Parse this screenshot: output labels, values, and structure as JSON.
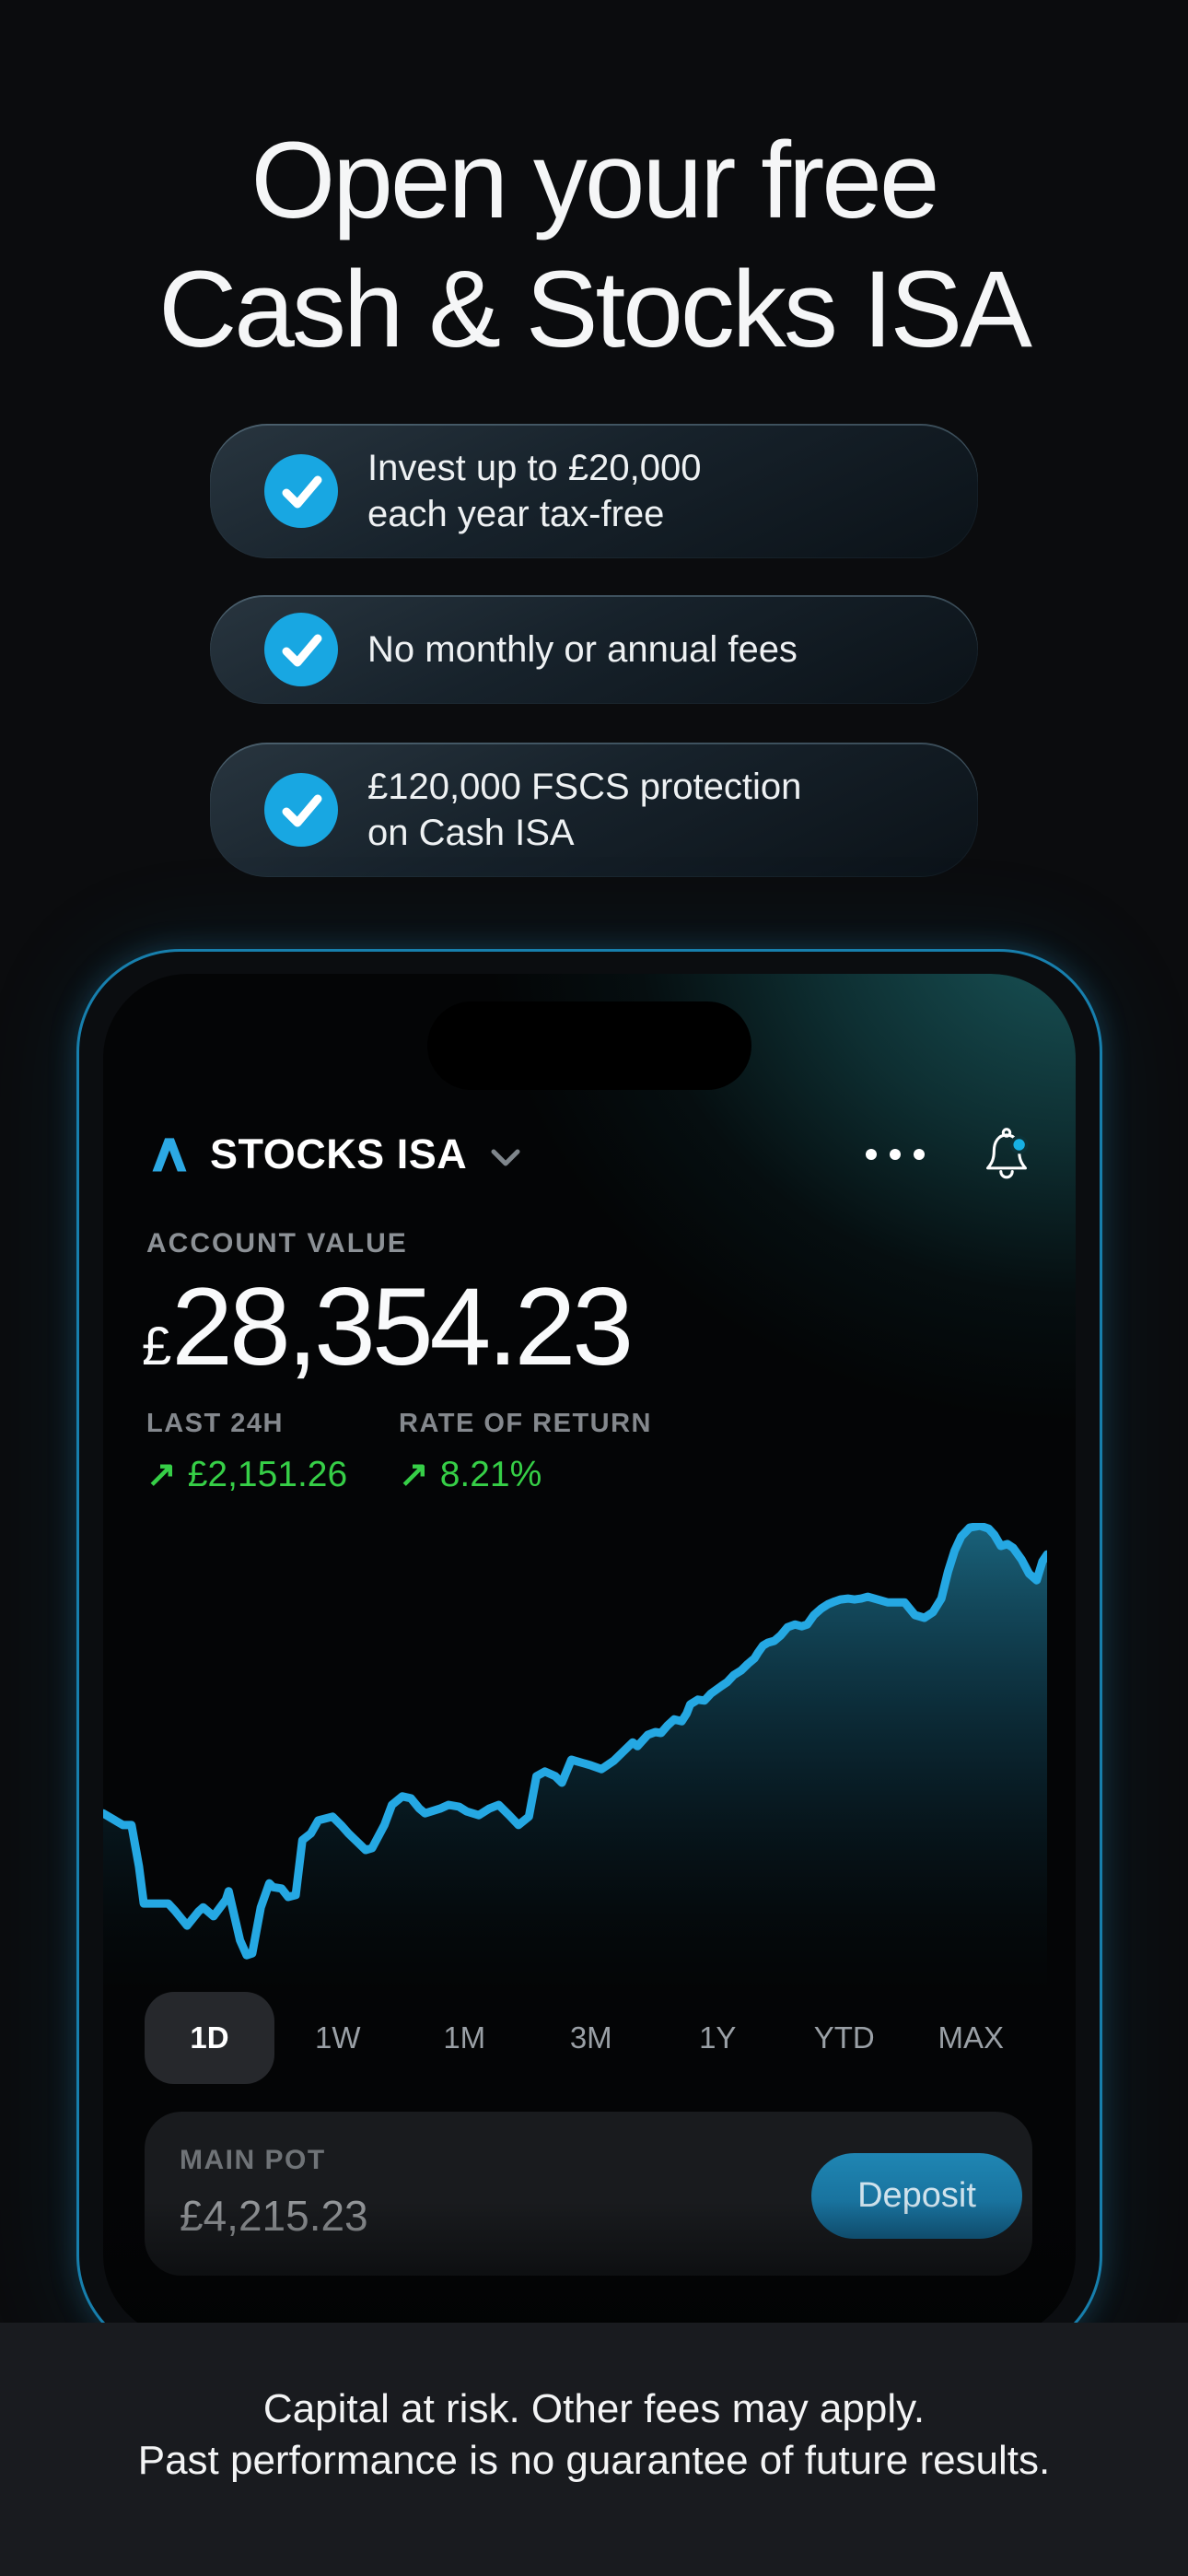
{
  "title": {
    "line1": "Open your free",
    "line2": "Cash & Stocks ISA"
  },
  "benefits": [
    {
      "line1": "Invest up to £20,000",
      "line2": "each year tax-free"
    },
    {
      "line1": "No monthly or annual fees",
      "line2": ""
    },
    {
      "line1": "£120,000 FSCS protection",
      "line2": "on Cash ISA"
    }
  ],
  "phone": {
    "header": {
      "title": "STOCKS ISA"
    },
    "account": {
      "label": "ACCOUNT VALUE",
      "currency": "£",
      "value": "28,354.23"
    },
    "stats": [
      {
        "label": "LAST 24H",
        "arrow": "↗",
        "value": "£2,151.26"
      },
      {
        "label": "RATE OF RETURN",
        "arrow": "↗",
        "value": "8.21%"
      }
    ],
    "tabs": [
      {
        "label": "1D",
        "selected": true
      },
      {
        "label": "1W",
        "selected": false
      },
      {
        "label": "1M",
        "selected": false
      },
      {
        "label": "3M",
        "selected": false
      },
      {
        "label": "1Y",
        "selected": false
      },
      {
        "label": "YTD",
        "selected": false
      },
      {
        "label": "MAX",
        "selected": false
      }
    ],
    "main_pot": {
      "label": "MAIN POT",
      "value": "£4,215.23",
      "button_label": "Deposit"
    }
  },
  "chart_data": {
    "type": "area",
    "title": "",
    "xlabel": "",
    "ylabel": "",
    "x_range": [
      0,
      100
    ],
    "y_range": [
      0,
      100
    ],
    "grid": false,
    "legend": false,
    "line_color": "#25a8e3",
    "fill_top_color": "#1b6a85",
    "points": [
      [
        0,
        38.2
      ],
      [
        2.1,
        35.7
      ],
      [
        3,
        35.7
      ],
      [
        3.8,
        26.9
      ],
      [
        4.3,
        19
      ],
      [
        6.9,
        19
      ],
      [
        7.6,
        17.5
      ],
      [
        8.9,
        14.3
      ],
      [
        10.1,
        17.3
      ],
      [
        10.6,
        18.2
      ],
      [
        11.7,
        16.3
      ],
      [
        13,
        19.8
      ],
      [
        13.3,
        21.6
      ],
      [
        14.5,
        11.2
      ],
      [
        15.2,
        8
      ],
      [
        15.8,
        8.4
      ],
      [
        16.7,
        18.2
      ],
      [
        17.6,
        23.3
      ],
      [
        18,
        22.5
      ],
      [
        18.9,
        22.2
      ],
      [
        19.6,
        20.4
      ],
      [
        20.4,
        20.8
      ],
      [
        21.1,
        32.5
      ],
      [
        22,
        33.9
      ],
      [
        22.8,
        36.7
      ],
      [
        24.3,
        37.5
      ],
      [
        25.2,
        35.7
      ],
      [
        26,
        33.9
      ],
      [
        27.8,
        30.4
      ],
      [
        28.5,
        30.8
      ],
      [
        29.8,
        35.7
      ],
      [
        30.6,
        40
      ],
      [
        31.7,
        41.8
      ],
      [
        32.6,
        41.4
      ],
      [
        33.5,
        39.2
      ],
      [
        34.1,
        38.2
      ],
      [
        35.7,
        39.2
      ],
      [
        36.6,
        40
      ],
      [
        37.7,
        39.6
      ],
      [
        38.5,
        38.6
      ],
      [
        39.8,
        37.8
      ],
      [
        40.9,
        39.2
      ],
      [
        41.9,
        40
      ],
      [
        43,
        37.8
      ],
      [
        44,
        35.7
      ],
      [
        45.1,
        37.5
      ],
      [
        45.9,
        46.1
      ],
      [
        46.8,
        47.1
      ],
      [
        47.9,
        46.1
      ],
      [
        48.6,
        44.7
      ],
      [
        49.6,
        49.6
      ],
      [
        51.7,
        48.4
      ],
      [
        52.8,
        47.6
      ],
      [
        54.1,
        49.4
      ],
      [
        56.1,
        53.3
      ],
      [
        56.6,
        52.5
      ],
      [
        57.7,
        54.9
      ],
      [
        58.5,
        55.5
      ],
      [
        59.1,
        55.3
      ],
      [
        59.8,
        56.9
      ],
      [
        60.5,
        58.2
      ],
      [
        61.3,
        57.8
      ],
      [
        61.8,
        59.4
      ],
      [
        62.2,
        61.4
      ],
      [
        63,
        62.4
      ],
      [
        63.7,
        62.2
      ],
      [
        64.4,
        63.7
      ],
      [
        65.5,
        65.3
      ],
      [
        66.1,
        66.1
      ],
      [
        66.8,
        67.6
      ],
      [
        67.6,
        68.6
      ],
      [
        68.3,
        70
      ],
      [
        69,
        71.2
      ],
      [
        69.4,
        72.5
      ],
      [
        69.9,
        73.9
      ],
      [
        70.4,
        74.5
      ],
      [
        71.1,
        74.9
      ],
      [
        71.8,
        76.1
      ],
      [
        72.5,
        77.8
      ],
      [
        73.3,
        78.4
      ],
      [
        74,
        78
      ],
      [
        74.6,
        78.4
      ],
      [
        75.3,
        80.4
      ],
      [
        76.1,
        81.8
      ],
      [
        76.8,
        82.7
      ],
      [
        77.5,
        83.3
      ],
      [
        78.1,
        83.7
      ],
      [
        78.9,
        83.9
      ],
      [
        79.6,
        83.7
      ],
      [
        80.3,
        83.9
      ],
      [
        81,
        84.3
      ],
      [
        83.1,
        83.1
      ],
      [
        84.9,
        83.1
      ],
      [
        86,
        80.4
      ],
      [
        87,
        79.8
      ],
      [
        87.9,
        81
      ],
      [
        88.8,
        83.9
      ],
      [
        89.5,
        89.6
      ],
      [
        90.2,
        94.1
      ],
      [
        90.9,
        97.1
      ],
      [
        91.8,
        99
      ],
      [
        92.9,
        99.4
      ],
      [
        93.8,
        98.8
      ],
      [
        94.4,
        97.5
      ],
      [
        95.1,
        95.1
      ],
      [
        95.8,
        95.5
      ],
      [
        96.4,
        94.7
      ],
      [
        97.3,
        92.2
      ],
      [
        98.1,
        89.2
      ],
      [
        98.9,
        87.8
      ],
      [
        99.5,
        91.8
      ],
      [
        100,
        93.3
      ]
    ]
  },
  "disclaimer": {
    "line1": "Capital at risk. Other fees may apply.",
    "line2": "Past performance is no guarantee of future results."
  },
  "colors": {
    "background": "#0b0c0e",
    "footer_background": "#191b1f",
    "accent_blue": "#25a8e3",
    "check_circle": "#18a7e2",
    "notification_badge": "#17b1e4",
    "positive_green": "#36cf47",
    "deposit_button": "#1b7fae",
    "phone_ring": "#177fad"
  },
  "icons": {
    "logo": "brand-caret",
    "dropdown": "chevron-down",
    "menu": "ellipsis",
    "notifications": "bell-with-badge",
    "benefit": "check-circle",
    "trend": "arrow-up-right"
  }
}
